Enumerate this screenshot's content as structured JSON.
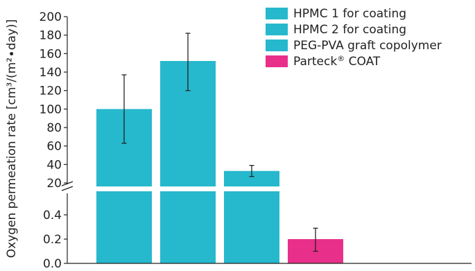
{
  "chart_data": {
    "type": "bar",
    "ylabel": "Oxygen permeation rate [cm³/(m²∙day)]",
    "axis_break": true,
    "upper_segment": {
      "ylim": [
        20,
        200
      ],
      "ticks": [
        "20",
        "40",
        "60",
        "80",
        "100",
        "120",
        "140",
        "160",
        "180",
        "200"
      ]
    },
    "lower_segment": {
      "ylim": [
        0,
        0.6
      ],
      "ticks": [
        "0.0",
        "0.2",
        "0.4"
      ]
    },
    "legend_placement": "top-right",
    "series": [
      {
        "name": "HPMC 1 for coating",
        "value": 100,
        "error_low": 63,
        "error_high": 137,
        "color": "#26b8cc"
      },
      {
        "name": "HPMC 2 for coating",
        "value": 152,
        "error_low": 120,
        "error_high": 182,
        "color": "#26b8cc"
      },
      {
        "name": "PEG-PVA graft copolymer",
        "value": 33,
        "error_low": 27,
        "error_high": 39,
        "color": "#26b8cc"
      },
      {
        "name_main": "Parteck",
        "name_sup": "®",
        "name_rest": " COAT",
        "value": 0.2,
        "error_low": 0.1,
        "error_high": 0.29,
        "color": "#e8308a"
      }
    ]
  }
}
